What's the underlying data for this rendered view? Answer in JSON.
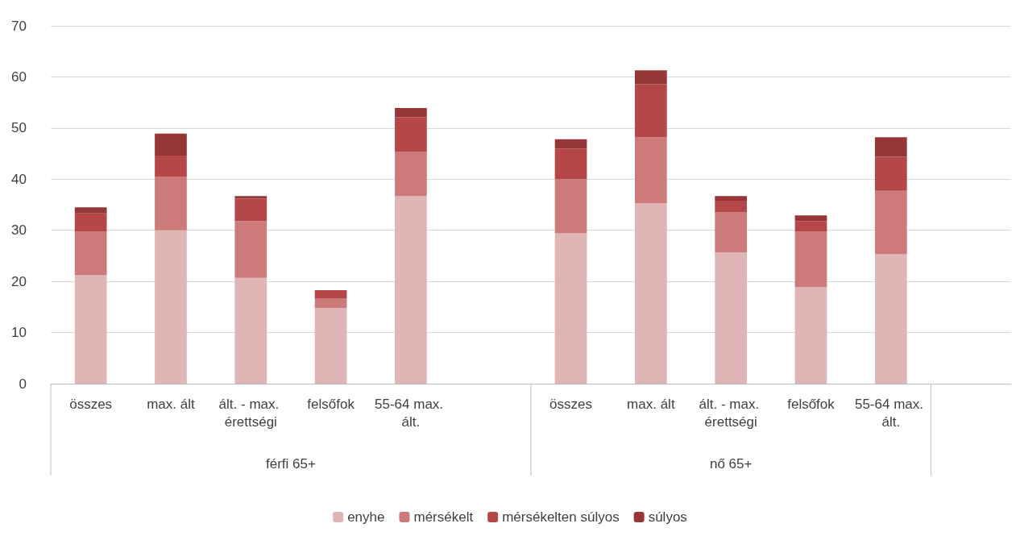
{
  "chart_data": {
    "type": "bar",
    "stacked": true,
    "categories": [
      "összes",
      "max. ált",
      "ált. - max. érettségi",
      "felsőfok",
      "55-64 max. ált.",
      null,
      "összes",
      "max. ált",
      "ált. - max. érettségi",
      "felsőfok",
      "55-64 max. ált.",
      null
    ],
    "series": [
      {
        "name": "enyhe",
        "color": "#dfb5b5",
        "values": [
          21.2,
          30.0,
          20.7,
          14.8,
          36.7,
          null,
          29.4,
          35.3,
          25.7,
          18.9,
          25.3,
          null
        ]
      },
      {
        "name": "mérsékelt",
        "color": "#cc7b7a",
        "values": [
          8.6,
          10.5,
          11.1,
          1.9,
          8.7,
          null,
          10.6,
          12.9,
          7.9,
          10.8,
          12.4,
          null
        ]
      },
      {
        "name": "mérsékelten súlyos",
        "color": "#b54748",
        "values": [
          3.5,
          4.1,
          4.4,
          1.6,
          6.7,
          null,
          6.0,
          10.4,
          2.2,
          2.1,
          6.7,
          null
        ]
      },
      {
        "name": "súlyos",
        "color": "#953737",
        "values": [
          1.2,
          4.3,
          0.5,
          0,
          1.8,
          null,
          1.8,
          2.7,
          0.9,
          1.1,
          3.8,
          null
        ]
      }
    ],
    "annotations": [
      "férfi 65+",
      "nő 65+"
    ],
    "ylim": [
      0,
      70
    ],
    "yticks": [
      0,
      10,
      20,
      30,
      40,
      50,
      60,
      70
    ],
    "grid": "y",
    "legend": "bottom"
  }
}
